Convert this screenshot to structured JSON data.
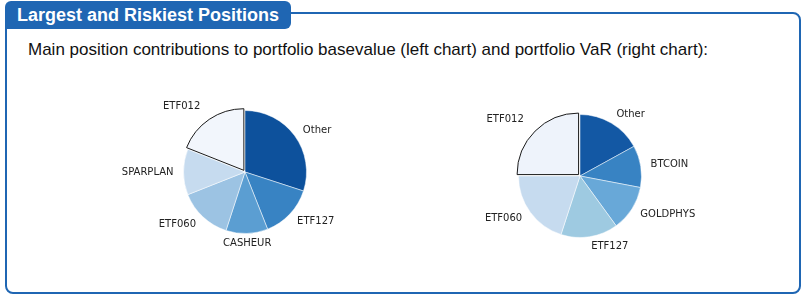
{
  "title": "Largest and Riskiest Positions",
  "subtitle": "Main position contributions to portfolio basevalue (left chart) and portfolio VaR (right chart):",
  "chart_data": [
    {
      "type": "pie",
      "categories": [
        "Other",
        "ETF127",
        "CASHEUR",
        "ETF060",
        "SPARPLAN",
        "ETF012"
      ],
      "values": [
        30,
        14,
        11,
        14,
        12,
        19
      ],
      "colors": [
        "#0d519c",
        "#3883c3",
        "#5b9ed2",
        "#9cc3e3",
        "#c6dbef",
        "#f2f6fc"
      ]
    },
    {
      "type": "pie",
      "categories": [
        "Other",
        "BTCOIN",
        "GOLDPHYS",
        "ETF127",
        "ETF060",
        "ETF012"
      ],
      "values": [
        17,
        11,
        12,
        15,
        20,
        25
      ],
      "colors": [
        "#1358a4",
        "#3883c3",
        "#68a8d8",
        "#9ecae1",
        "#c6dbef",
        "#eef3fb"
      ]
    }
  ]
}
